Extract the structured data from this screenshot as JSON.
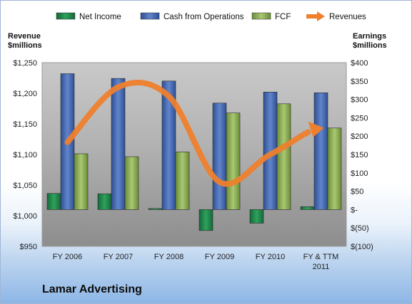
{
  "chart_data": {
    "type": "bar",
    "title": "",
    "categories": [
      [
        "FY 2006"
      ],
      [
        "FY 2007"
      ],
      [
        "FY 2008"
      ],
      [
        "FY 2009"
      ],
      [
        "FY 2010"
      ],
      [
        "FY & TTM",
        "2011"
      ]
    ],
    "left_axis": {
      "label_lines": [
        "Revenue",
        "$millions"
      ],
      "ylim": [
        950,
        1250
      ],
      "ticks": [
        950,
        1000,
        1050,
        1100,
        1150,
        1200,
        1250
      ],
      "tick_labels": [
        "$950",
        "$1,000",
        "$1,050",
        "$1,100",
        "$1,150",
        "$1,200",
        "$1,250"
      ]
    },
    "right_axis": {
      "label_lines": [
        "Earnings",
        "$millions"
      ],
      "ylim": [
        -100,
        400
      ],
      "ticks": [
        -100,
        -50,
        0,
        50,
        100,
        150,
        200,
        250,
        300,
        350,
        400
      ],
      "tick_labels": [
        "$(100)",
        "$(50)",
        "$-",
        "$50",
        "$100",
        "$150",
        "$200",
        "$250",
        "$300",
        "$350",
        "$400"
      ]
    },
    "series": [
      {
        "name": "Net Income",
        "kind": "bar",
        "axis": "right",
        "color": "#1f8a4c",
        "values": [
          44,
          43,
          3,
          -57,
          -37,
          8
        ]
      },
      {
        "name": "Cash from Operations",
        "kind": "bar",
        "axis": "right",
        "color": "#4a6fb5",
        "values": [
          370,
          357,
          350,
          290,
          320,
          318
        ]
      },
      {
        "name": "FCF",
        "kind": "bar",
        "axis": "right",
        "color": "#8aad52",
        "values": [
          152,
          144,
          157,
          263,
          288,
          222
        ]
      },
      {
        "name": "Revenues",
        "kind": "line",
        "axis": "left",
        "color": "#ee7f2d",
        "values": [
          1120,
          1210,
          1195,
          1055,
          1100,
          1140
        ]
      }
    ],
    "legend": "top",
    "grid": false
  },
  "company": "Lamar Advertising"
}
